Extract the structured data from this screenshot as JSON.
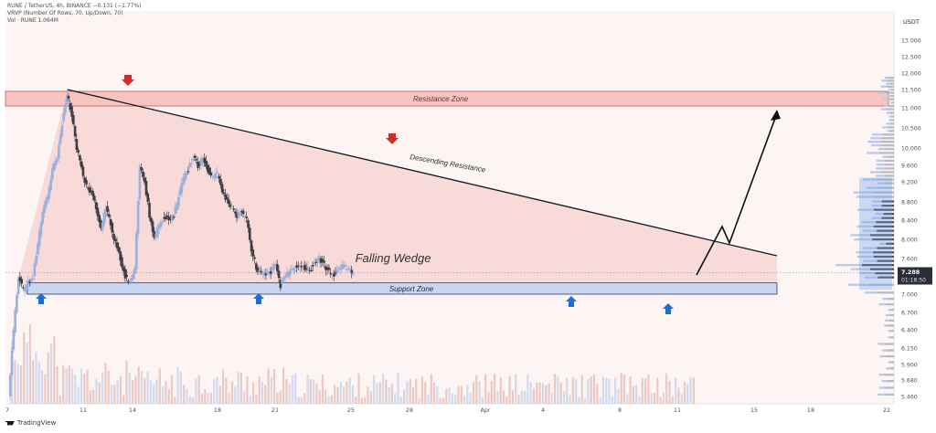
{
  "header": {
    "line1": "RUNE / TetherUS, 4h, BINANCE  −0.131 (−1.77%)",
    "line2": "VRVP (Number Of Rows, 70, Up/Down, 70)",
    "line3": "Vol · RUNE  1.064M"
  },
  "footer": {
    "brand": "TradingView"
  },
  "colors": {
    "up": "#9bb0dc",
    "down": "#3b3d44",
    "wedge_fill": "#f7d6d2",
    "resistance_zone": "#f7c4c1",
    "support_zone": "#c9d6f2",
    "arrow_down": "#d32a2a",
    "arrow_up": "#1b6fd1",
    "price_badge": "#2a2e39",
    "plot_bg": "#fdf5f3"
  },
  "chart_data": {
    "type": "candlestick",
    "symbol": "RUNE / TetherUS",
    "timeframe": "4h",
    "exchange": "BINANCE",
    "price_axis_unit": "USDT",
    "last_price": "7.288",
    "countdown": "01:18:50",
    "price_ticks": [
      "13.000",
      "12.500",
      "12.000",
      "11.500",
      "11.000",
      "10.500",
      "10.000",
      "9.600",
      "9.200",
      "8.800",
      "8.400",
      "8.000",
      "7.600",
      "7.200",
      "7.000",
      "6.700",
      "6.400",
      "6.150",
      "5.900",
      "5.680",
      "5.460"
    ],
    "date_ticks": [
      "7",
      "11",
      "14",
      "18",
      "21",
      "25",
      "28",
      "Apr",
      "4",
      "8",
      "11",
      "15",
      "18",
      "22"
    ],
    "path_points": [
      [
        "7",
        5.4
      ],
      [
        "7.5",
        6.4
      ],
      [
        "8",
        7.2
      ],
      [
        "8.5",
        7.05
      ],
      [
        "9",
        7.15
      ],
      [
        "9.5",
        7.2
      ],
      [
        "10",
        7.9
      ],
      [
        "10.5",
        8.6
      ],
      [
        "11",
        8.9
      ],
      [
        "11.5",
        9.5
      ],
      [
        "12",
        9.8
      ],
      [
        "12.5",
        10.6
      ],
      [
        "13",
        11.4
      ],
      [
        "13.5",
        10.8
      ],
      [
        "14",
        10.0
      ],
      [
        "14.5",
        9.5
      ],
      [
        "15",
        9.1
      ],
      [
        "15.5",
        9.0
      ],
      [
        "16",
        8.7
      ],
      [
        "16.5",
        8.2
      ],
      [
        "17",
        8.7
      ],
      [
        "17.5",
        8.3
      ],
      [
        "18",
        7.9
      ],
      [
        "18.5",
        7.6
      ],
      [
        "19",
        7.2
      ],
      [
        "19.5",
        7.15
      ],
      [
        "20",
        7.4
      ],
      [
        "20.5",
        9.6
      ],
      [
        "21",
        9.2
      ],
      [
        "21.5",
        8.5
      ],
      [
        "22",
        8.0
      ],
      [
        "22.5",
        8.3
      ],
      [
        "23",
        8.5
      ],
      [
        "23.5",
        8.4
      ],
      [
        "24",
        8.5
      ],
      [
        "24.5",
        8.9
      ],
      [
        "25",
        9.3
      ],
      [
        "25.5",
        9.5
      ],
      [
        "26",
        9.8
      ],
      [
        "26.5",
        9.6
      ],
      [
        "27",
        9.8
      ],
      [
        "27.5",
        9.5
      ],
      [
        "28",
        9.3
      ],
      [
        "28.5",
        9.4
      ],
      [
        "29",
        9.0
      ],
      [
        "29.5",
        8.8
      ],
      [
        "30",
        8.7
      ],
      [
        "30.5",
        8.5
      ],
      [
        "31",
        8.6
      ],
      [
        "31.5",
        8.4
      ],
      [
        "Apr",
        7.8
      ],
      [
        "1.5",
        7.4
      ],
      [
        "2",
        7.3
      ],
      [
        "2.5",
        7.25
      ],
      [
        "3",
        7.3
      ],
      [
        "3.5",
        7.5
      ],
      [
        "4",
        7.1
      ],
      [
        "4.5",
        7.2
      ],
      [
        "5",
        7.35
      ],
      [
        "5.5",
        7.4
      ],
      [
        "6",
        7.45
      ],
      [
        "6.5",
        7.4
      ],
      [
        "7",
        7.35
      ],
      [
        "7.5",
        7.5
      ],
      [
        "8",
        7.6
      ],
      [
        "8.5",
        7.45
      ],
      [
        "9",
        7.3
      ],
      [
        "9.5",
        7.25
      ],
      [
        "10",
        7.35
      ],
      [
        "10.5",
        7.45
      ],
      [
        "11",
        7.35
      ],
      [
        "11.5",
        7.29
      ]
    ],
    "annotations": {
      "resistance_zone": {
        "label": "Resistance Zone",
        "range": [
          11.05,
          11.45
        ]
      },
      "support_zone": {
        "label": "Support Zone",
        "range": [
          7.0,
          7.13
        ]
      },
      "descending_resistance": {
        "label": "Descending Resistance",
        "from": [
          "13",
          11.5
        ],
        "to": [
          "16",
          7.7
        ]
      },
      "pattern": {
        "label": "Falling Wedge"
      },
      "projection": [
        [
          "11.5",
          7.2
        ],
        [
          "13",
          7.9
        ],
        [
          "13.5",
          7.7
        ],
        [
          "15.5",
          11.0
        ]
      ],
      "red_markers": [
        "13",
        "27"
      ],
      "blue_markers": [
        "8",
        "20",
        "5",
        "10.5"
      ]
    },
    "volume_profile": true,
    "volume_panel": true,
    "grid": false
  }
}
